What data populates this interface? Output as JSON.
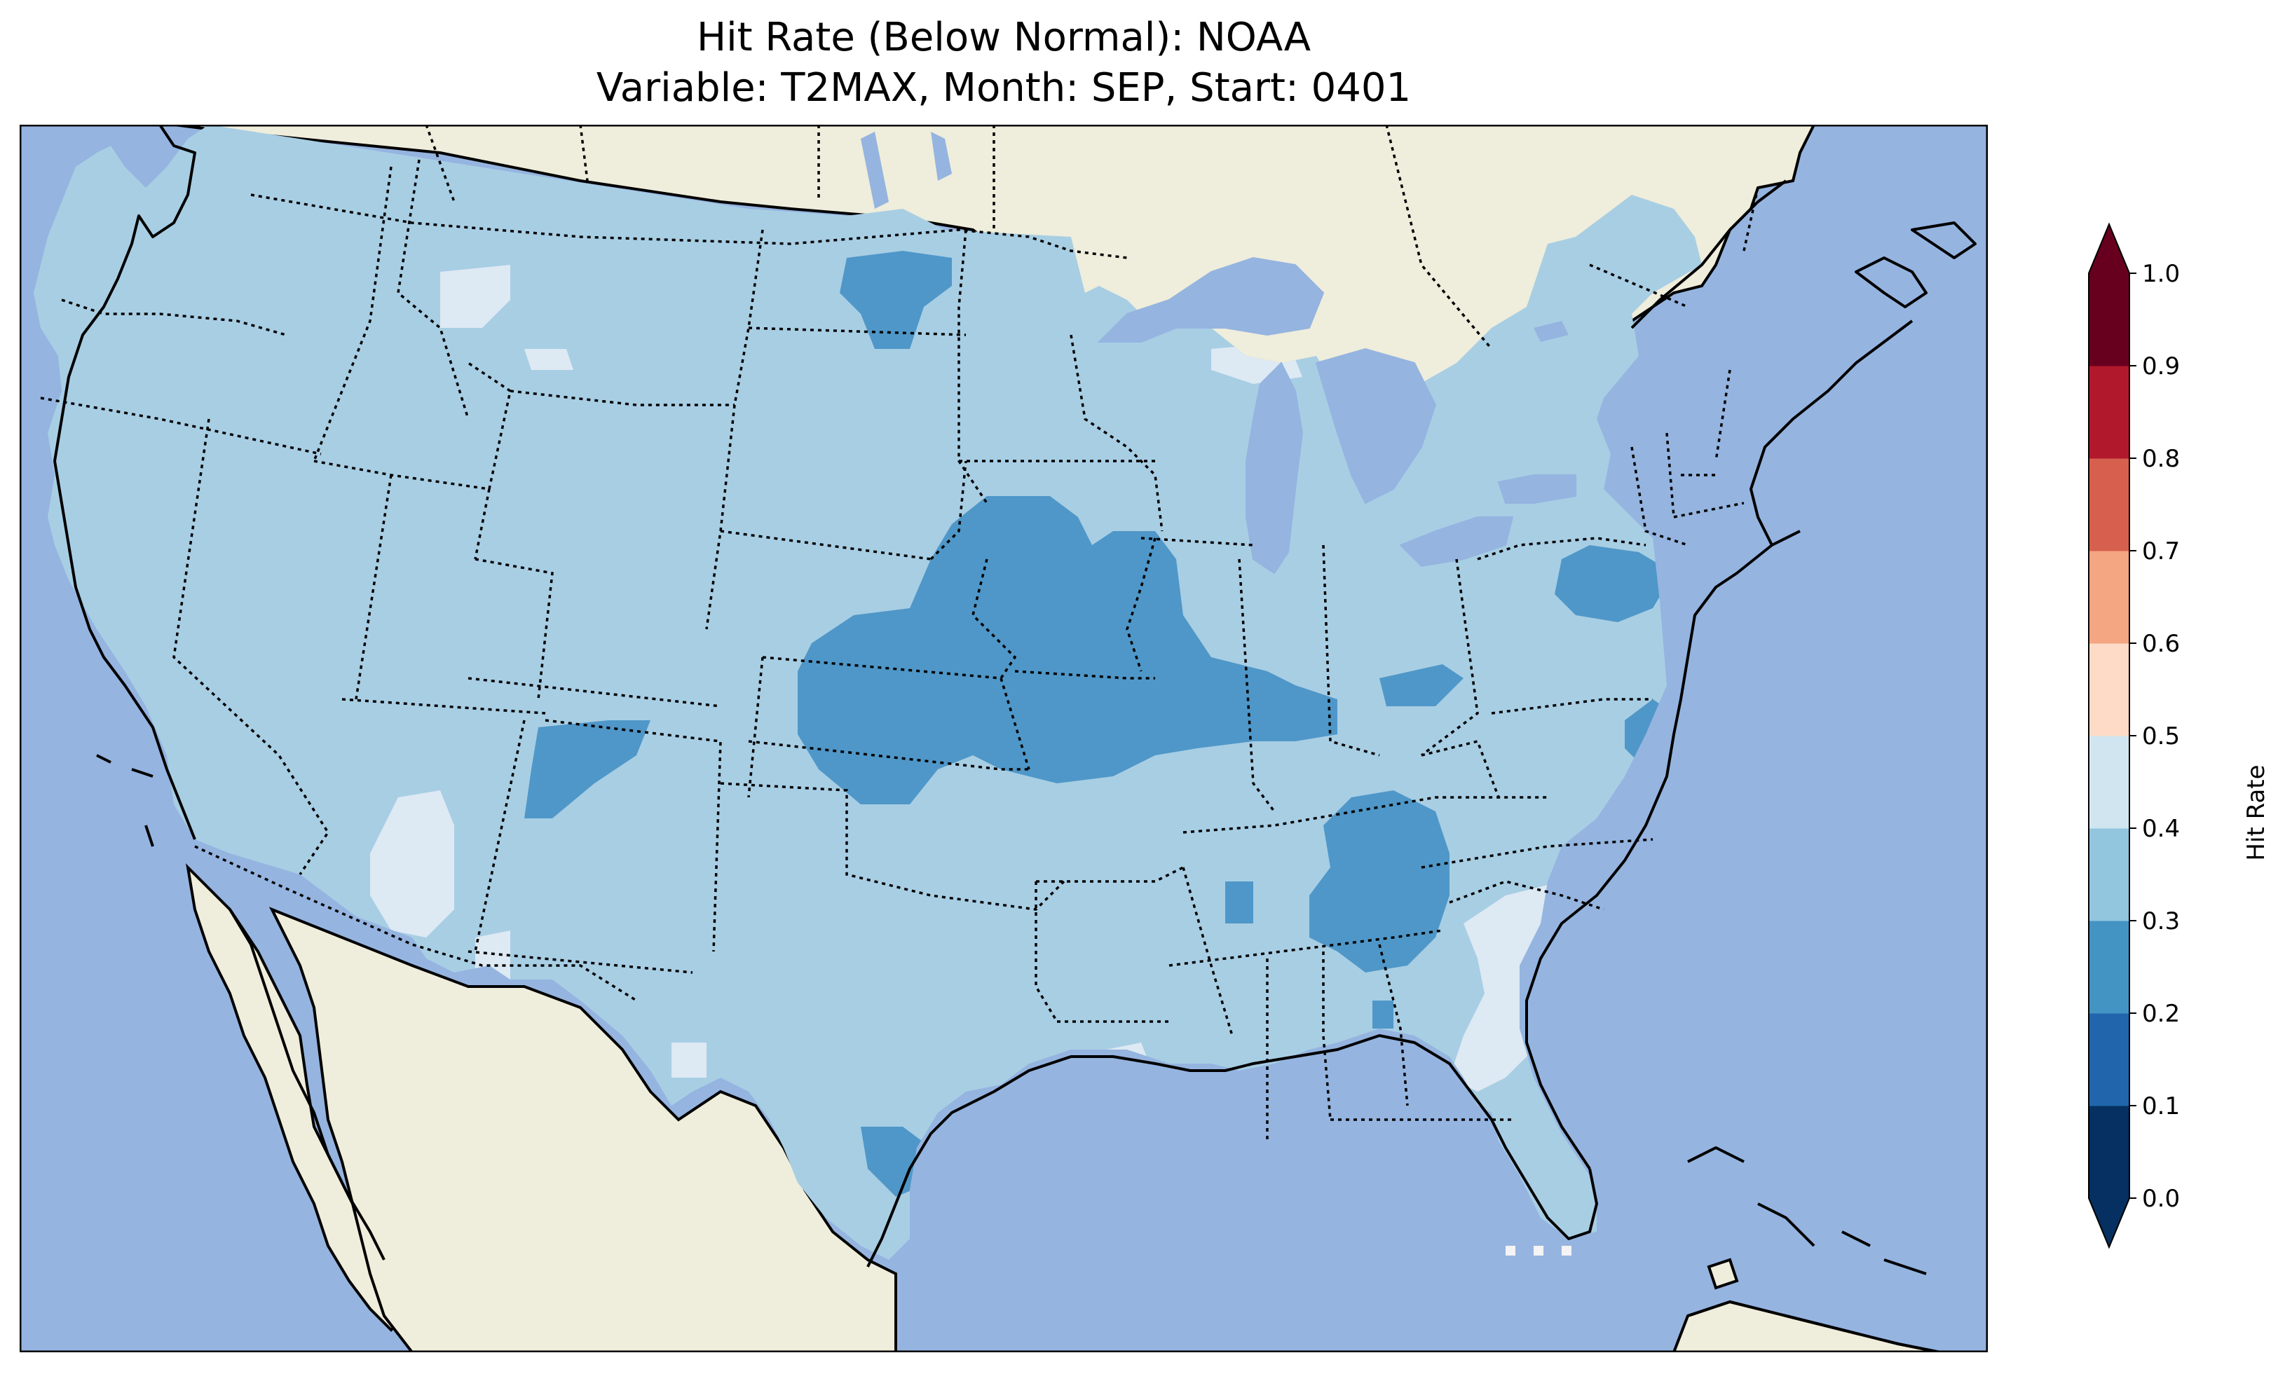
{
  "figure": {
    "title_line1": "Hit Rate (Below Normal): NOAA",
    "title_line2": "Variable: T2MAX, Month: SEP, Start: 0401"
  },
  "colors": {
    "ocean": "#95b4e0",
    "land": "#efeddb",
    "coast": "#000000",
    "border": "#000000"
  },
  "colorbar": {
    "label": "Hit Rate",
    "ticks": [
      "0.0",
      "0.1",
      "0.2",
      "0.3",
      "0.4",
      "0.5",
      "0.6",
      "0.7",
      "0.8",
      "0.9",
      "1.0"
    ],
    "levels": [
      0.0,
      0.1,
      0.2,
      0.3,
      0.4,
      0.5,
      0.6,
      0.7,
      0.8,
      0.9,
      1.0
    ],
    "colors": [
      "#053061",
      "#2166ac",
      "#4393c3",
      "#92c5de",
      "#d1e5f0",
      "#fddbc7",
      "#f4a582",
      "#d6604d",
      "#b2182b",
      "#67001f"
    ],
    "under_color": "#053061",
    "over_color": "#67001f",
    "extend": "both"
  },
  "chart_data": {
    "type": "heatmap",
    "region": "Contiguous United States",
    "variable": "T2MAX",
    "month": "SEP",
    "start": "0401",
    "field_bins": [
      {
        "range": [
          0.3,
          0.4
        ],
        "color": "#a8cee4",
        "coverage": "dominant class over most of the CONUS"
      },
      {
        "range": [
          0.2,
          0.3
        ],
        "color": "#4f97c8",
        "coverage": "Nebraska/Kansas, Iowa/S Minnesota, Illinois band, Kentucky/Tennessee, N Dakota, New York, Delmarva, SE Texas, SE Colorado"
      },
      {
        "range": [
          0.4,
          0.5
        ],
        "color": "#dde9f3",
        "coverage": "patches in Nevada, SE Arizona, S Carolina/Georgia, N Carolina, Mississippi, SE New Mexico, Idaho/Montana"
      }
    ]
  }
}
